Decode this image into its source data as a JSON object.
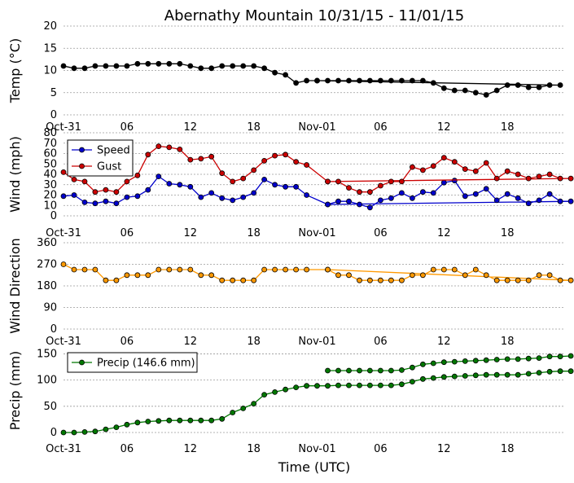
{
  "title": "Abernathy Mountain 10/31/15 - 11/01/15",
  "xlabel": "Time (UTC)",
  "x_tick_labels": [
    "Oct-31",
    "06",
    "12",
    "18",
    "Nov-01",
    "06",
    "12",
    "18"
  ],
  "colors": {
    "temp": "#000000",
    "speed": "#0000cc",
    "gust": "#cc0000",
    "direction": "#ff9900",
    "precip": "#007700",
    "grid": "#9a9a9a"
  },
  "chart_data": [
    {
      "id": "temp",
      "type": "line",
      "ylabel": "Temp (°C)",
      "ylim": [
        0,
        20
      ],
      "yticks": [
        "0",
        "5",
        "10",
        "15",
        "20"
      ],
      "grid": true,
      "series": [
        {
          "name": "Temp",
          "color": "#000000",
          "x": [
            0,
            1,
            2,
            3,
            4,
            5,
            6,
            7,
            8,
            9,
            10,
            11,
            12,
            13,
            14,
            15,
            16,
            17,
            18,
            19,
            20,
            21,
            22,
            23,
            24,
            25,
            26,
            27,
            28,
            29,
            30,
            31,
            32,
            33,
            34,
            35,
            36,
            37,
            38,
            39,
            40,
            41,
            42,
            43,
            44,
            45,
            46,
            47,
            24
          ],
          "values": [
            11,
            10.5,
            10.5,
            11,
            11,
            11,
            11,
            11.5,
            11.5,
            11.5,
            11.5,
            11.5,
            11,
            10.5,
            10.5,
            11,
            11,
            11,
            11,
            10.5,
            9.5,
            9,
            7.2,
            7.7,
            7.7,
            7.7,
            7.7,
            7.7,
            7.7,
            7.7,
            7.7,
            7.7,
            7.7,
            7.7,
            7.7,
            7.2,
            6,
            5.5,
            5.5,
            5,
            4.5,
            5.5,
            6.7,
            6.7,
            6.2,
            6.2,
            6.7,
            6.7,
            7.7
          ]
        }
      ]
    },
    {
      "id": "wind",
      "type": "line",
      "ylabel": "Wind (mph)",
      "ylim": [
        0,
        80
      ],
      "yticks": [
        "0",
        "10",
        "20",
        "30",
        "40",
        "50",
        "60",
        "70",
        "80"
      ],
      "grid": true,
      "legend": "upper-left",
      "series": [
        {
          "name": "Speed",
          "color": "#0000cc",
          "x": [
            0,
            1,
            2,
            3,
            4,
            5,
            6,
            7,
            8,
            9,
            10,
            11,
            12,
            13,
            14,
            15,
            16,
            17,
            18,
            19,
            20,
            21,
            22,
            23,
            25,
            26,
            27,
            28,
            29,
            30,
            31,
            32,
            33,
            34,
            35,
            36,
            37,
            38,
            39,
            40,
            41,
            42,
            43,
            44,
            45,
            46,
            47,
            48,
            25
          ],
          "values": [
            19,
            20,
            13,
            12,
            14,
            12,
            18,
            19,
            25,
            38,
            31,
            30,
            28,
            18,
            22,
            17,
            15,
            18,
            22,
            35,
            30,
            28,
            28,
            20,
            11,
            14,
            14,
            11,
            8,
            15,
            17,
            22,
            17,
            23,
            22,
            32,
            34,
            19,
            21,
            26,
            15,
            21,
            17,
            12,
            15,
            21,
            14,
            14,
            11
          ]
        },
        {
          "name": "Gust",
          "color": "#cc0000",
          "x": [
            0,
            1,
            2,
            3,
            4,
            5,
            6,
            7,
            8,
            9,
            10,
            11,
            12,
            13,
            14,
            15,
            16,
            17,
            18,
            19,
            20,
            21,
            22,
            23,
            25,
            26,
            27,
            28,
            29,
            30,
            31,
            32,
            33,
            34,
            35,
            36,
            37,
            38,
            39,
            40,
            41,
            42,
            43,
            44,
            45,
            46,
            47,
            48,
            25
          ],
          "values": [
            42,
            35,
            33,
            23,
            25,
            23,
            33,
            39,
            59,
            67,
            66,
            64,
            54,
            55,
            57,
            41,
            33,
            36,
            44,
            53,
            58,
            59,
            52,
            49,
            33,
            33,
            27,
            23,
            23,
            29,
            33,
            33,
            47,
            44,
            48,
            56,
            52,
            45,
            43,
            51,
            36,
            43,
            40,
            36,
            38,
            40,
            36,
            36,
            33
          ]
        }
      ]
    },
    {
      "id": "direction",
      "type": "line",
      "ylabel": "Wind Direction",
      "ylim": [
        0,
        360
      ],
      "yticks": [
        "0",
        "90",
        "180",
        "270",
        "360"
      ],
      "grid": true,
      "series": [
        {
          "name": "Direction",
          "color": "#ff9900",
          "x": [
            0,
            1,
            2,
            3,
            4,
            5,
            6,
            7,
            8,
            9,
            10,
            11,
            12,
            13,
            14,
            15,
            16,
            17,
            18,
            19,
            20,
            21,
            22,
            23,
            25,
            26,
            27,
            28,
            29,
            30,
            31,
            32,
            33,
            34,
            35,
            36,
            37,
            38,
            39,
            40,
            41,
            42,
            43,
            44,
            45,
            46,
            47,
            48,
            25
          ],
          "values": [
            270,
            248,
            248,
            248,
            203,
            203,
            225,
            225,
            225,
            248,
            248,
            248,
            248,
            225,
            225,
            203,
            203,
            203,
            203,
            248,
            248,
            248,
            248,
            248,
            248,
            225,
            225,
            203,
            203,
            203,
            203,
            203,
            225,
            225,
            248,
            248,
            248,
            225,
            248,
            225,
            203,
            203,
            203,
            203,
            225,
            225,
            203,
            203,
            248
          ]
        }
      ]
    },
    {
      "id": "precip",
      "type": "line",
      "ylabel": "Precip (mm)",
      "ylim": [
        0,
        160
      ],
      "yticks": [
        "0",
        "50",
        "100",
        "150"
      ],
      "grid": true,
      "legend": "upper-left",
      "series": [
        {
          "name": "Precip (146.6 mm)",
          "color": "#007700",
          "x": [
            0,
            1,
            2,
            3,
            4,
            5,
            6,
            7,
            8,
            9,
            10,
            11,
            12,
            13,
            14,
            15,
            16,
            17,
            18,
            19,
            20,
            21,
            22,
            23,
            24,
            25,
            26,
            27,
            28,
            29,
            30,
            31,
            32,
            33,
            34,
            35,
            36,
            37,
            38,
            39,
            40,
            41,
            42,
            43,
            44,
            45,
            46,
            47,
            48
          ],
          "values": [
            0,
            0,
            1,
            2,
            6,
            10,
            15,
            19,
            21,
            22,
            23,
            23,
            23,
            23,
            23,
            26,
            38,
            46,
            55,
            72,
            77,
            82,
            86,
            89,
            89,
            89,
            90,
            90,
            90,
            90,
            90,
            90,
            92,
            97,
            102,
            104,
            106,
            107,
            108,
            109,
            110,
            110,
            110,
            110,
            112,
            114,
            116,
            117,
            117
          ],
          "x_b": [
            25,
            26,
            27,
            28,
            29,
            30,
            31,
            32,
            33,
            34,
            35,
            36,
            37,
            38,
            39,
            40,
            41,
            42,
            43,
            44,
            45,
            46,
            47,
            48
          ],
          "values_b": [
            118,
            118,
            118,
            118,
            118,
            118,
            118,
            119,
            124,
            130,
            132,
            134,
            135,
            136,
            137,
            138,
            139,
            140,
            140,
            141,
            142,
            145,
            145,
            146
          ]
        }
      ]
    }
  ]
}
